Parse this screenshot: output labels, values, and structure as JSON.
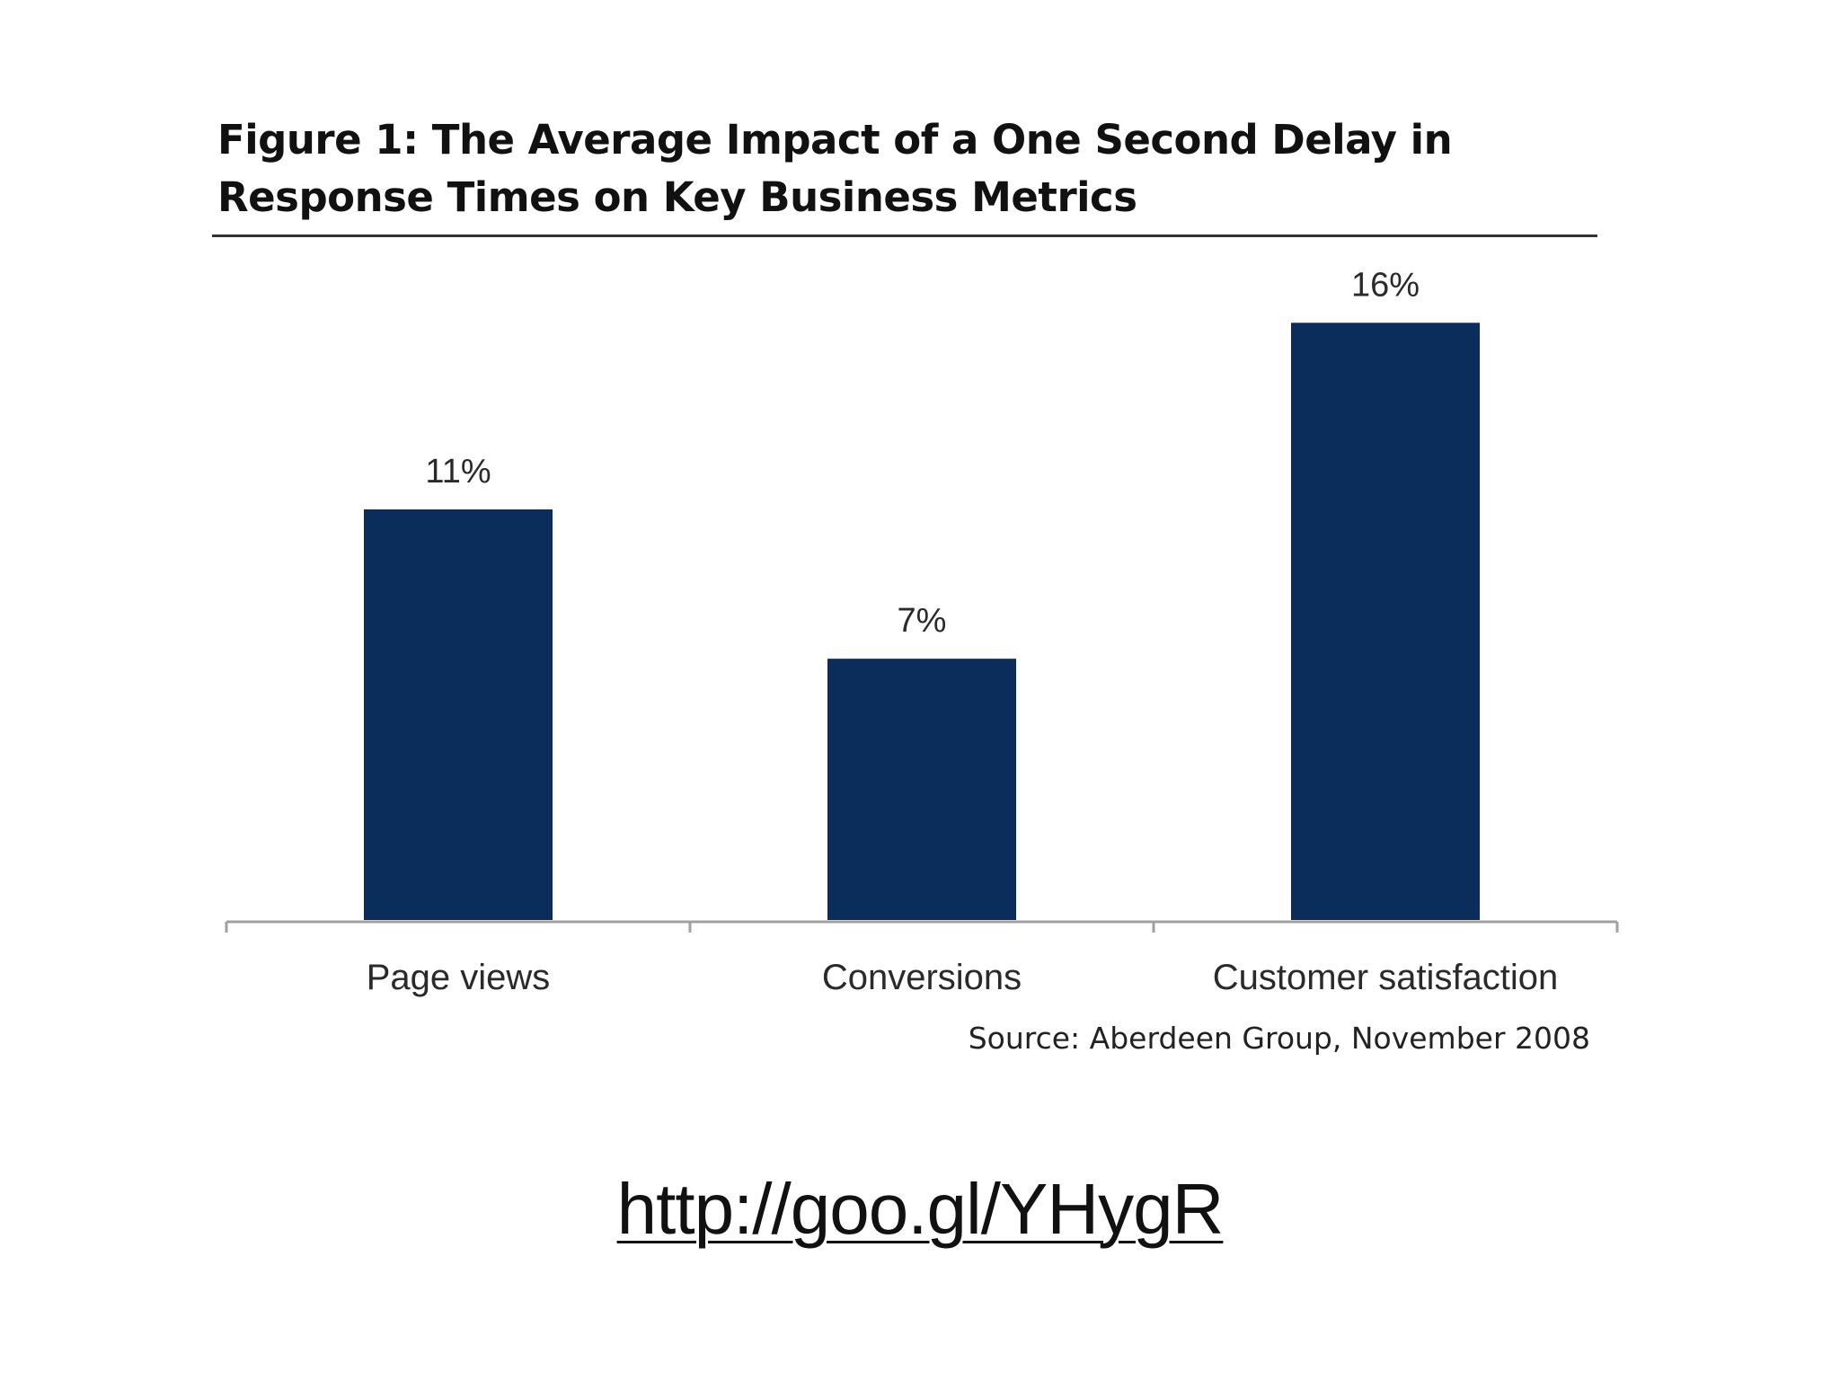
{
  "chart_data": {
    "type": "bar",
    "title": "Figure 1: The Average Impact of a One Second Delay in Response Times on Key Business Metrics",
    "categories": [
      "Page views",
      "Conversions",
      "Customer satisfaction"
    ],
    "values": [
      11,
      7,
      16
    ],
    "value_labels": [
      "11%",
      "7%",
      "16%"
    ],
    "xlabel": "",
    "ylabel": "",
    "ylim": [
      0,
      17
    ],
    "grid": false,
    "legend": "none",
    "source": "Source: Aberdeen Group, November 2008",
    "colors": {
      "bar": "#0a2d5c",
      "axis": "#a0a0a0"
    }
  },
  "slide": {
    "link": "http://goo.gl/YHygR"
  }
}
